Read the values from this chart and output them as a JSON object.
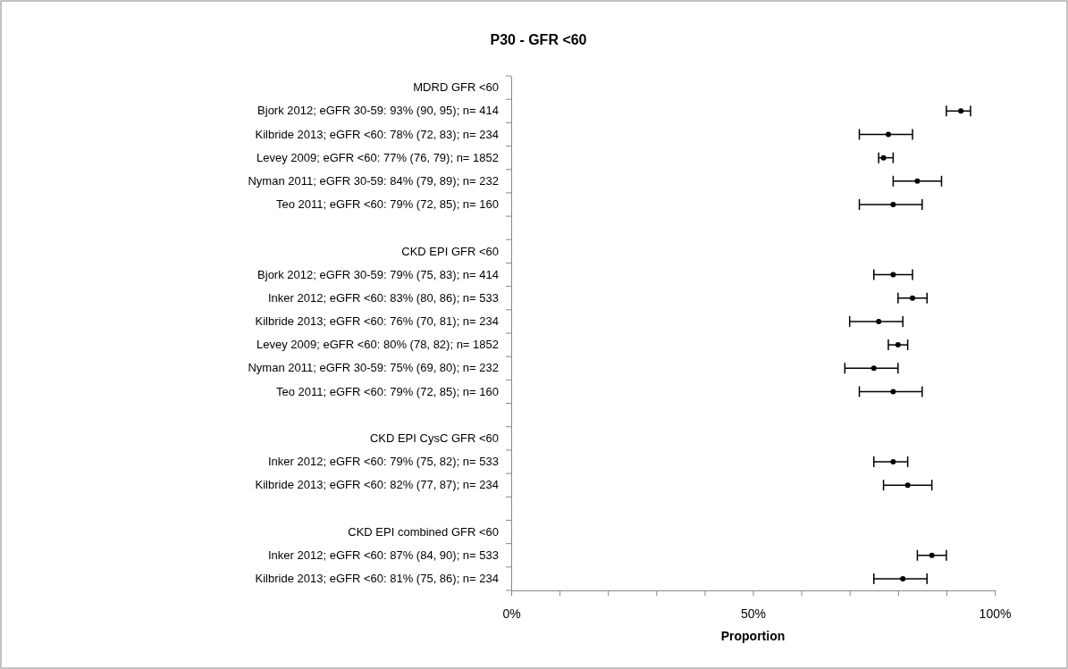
{
  "chart_data": {
    "type": "scatter",
    "title": "P30 - GFR <60",
    "xlabel": "Proportion",
    "orientation": "horizontal",
    "categories": [
      "MDRD GFR <60",
      "Bjork 2012; eGFR 30-59: 93% (90, 95); n= 414",
      "Kilbride 2013; eGFR <60: 78% (72, 83); n= 234",
      "Levey 2009; eGFR <60: 77% (76, 79); n= 1852",
      "Nyman 2011; eGFR 30-59: 84% (79, 89); n= 232",
      "Teo 2011; eGFR <60: 79% (72, 85); n= 160",
      null,
      "CKD EPI GFR <60",
      "Bjork 2012; eGFR 30-59: 79% (75, 83); n= 414",
      "Inker 2012; eGFR <60: 83% (80, 86); n= 533",
      "Kilbride 2013; eGFR <60: 76% (70, 81); n= 234",
      "Levey 2009; eGFR <60: 80% (78, 82); n= 1852",
      "Nyman 2011; eGFR 30-59: 75% (69, 80); n= 232",
      "Teo 2011; eGFR <60: 79% (72, 85); n= 160",
      null,
      "CKD EPI CysC GFR <60",
      "Inker 2012; eGFR <60: 79% (75, 82); n= 533",
      "Kilbride 2013; eGFR <60: 82% (77, 87); n= 234",
      null,
      "CKD EPI combined GFR <60",
      "Inker 2012; eGFR <60: 87% (84, 90); n= 533",
      "Kilbride 2013; eGFR <60: 81% (75, 86); n= 234"
    ],
    "series": [
      {
        "color": "#000000",
        "values": [
          null,
          93,
          78,
          77,
          84,
          79,
          null,
          null,
          79,
          83,
          76,
          80,
          75,
          79,
          null,
          null,
          79,
          82,
          null,
          null,
          87,
          81
        ],
        "errors": [
          null,
          [
            90,
            95
          ],
          [
            72,
            83
          ],
          [
            76,
            79
          ],
          [
            79,
            89
          ],
          [
            72,
            85
          ],
          null,
          null,
          [
            75,
            83
          ],
          [
            80,
            86
          ],
          [
            70,
            81
          ],
          [
            78,
            82
          ],
          [
            69,
            80
          ],
          [
            72,
            85
          ],
          null,
          null,
          [
            75,
            82
          ],
          [
            77,
            87
          ],
          null,
          null,
          [
            84,
            90
          ],
          [
            75,
            86
          ]
        ]
      }
    ],
    "marker": "circle",
    "xlim": [
      0,
      100
    ],
    "xticks": [
      {
        "value": 0,
        "label": "0%"
      },
      {
        "value": 10,
        "label": null
      },
      {
        "value": 20,
        "label": null
      },
      {
        "value": 30,
        "label": null
      },
      {
        "value": 40,
        "label": null
      },
      {
        "value": 50,
        "label": "50%"
      },
      {
        "value": 60,
        "label": null
      },
      {
        "value": 70,
        "label": null
      },
      {
        "value": 80,
        "label": null
      },
      {
        "value": 90,
        "label": null
      },
      {
        "value": 100,
        "label": "100%"
      }
    ]
  }
}
